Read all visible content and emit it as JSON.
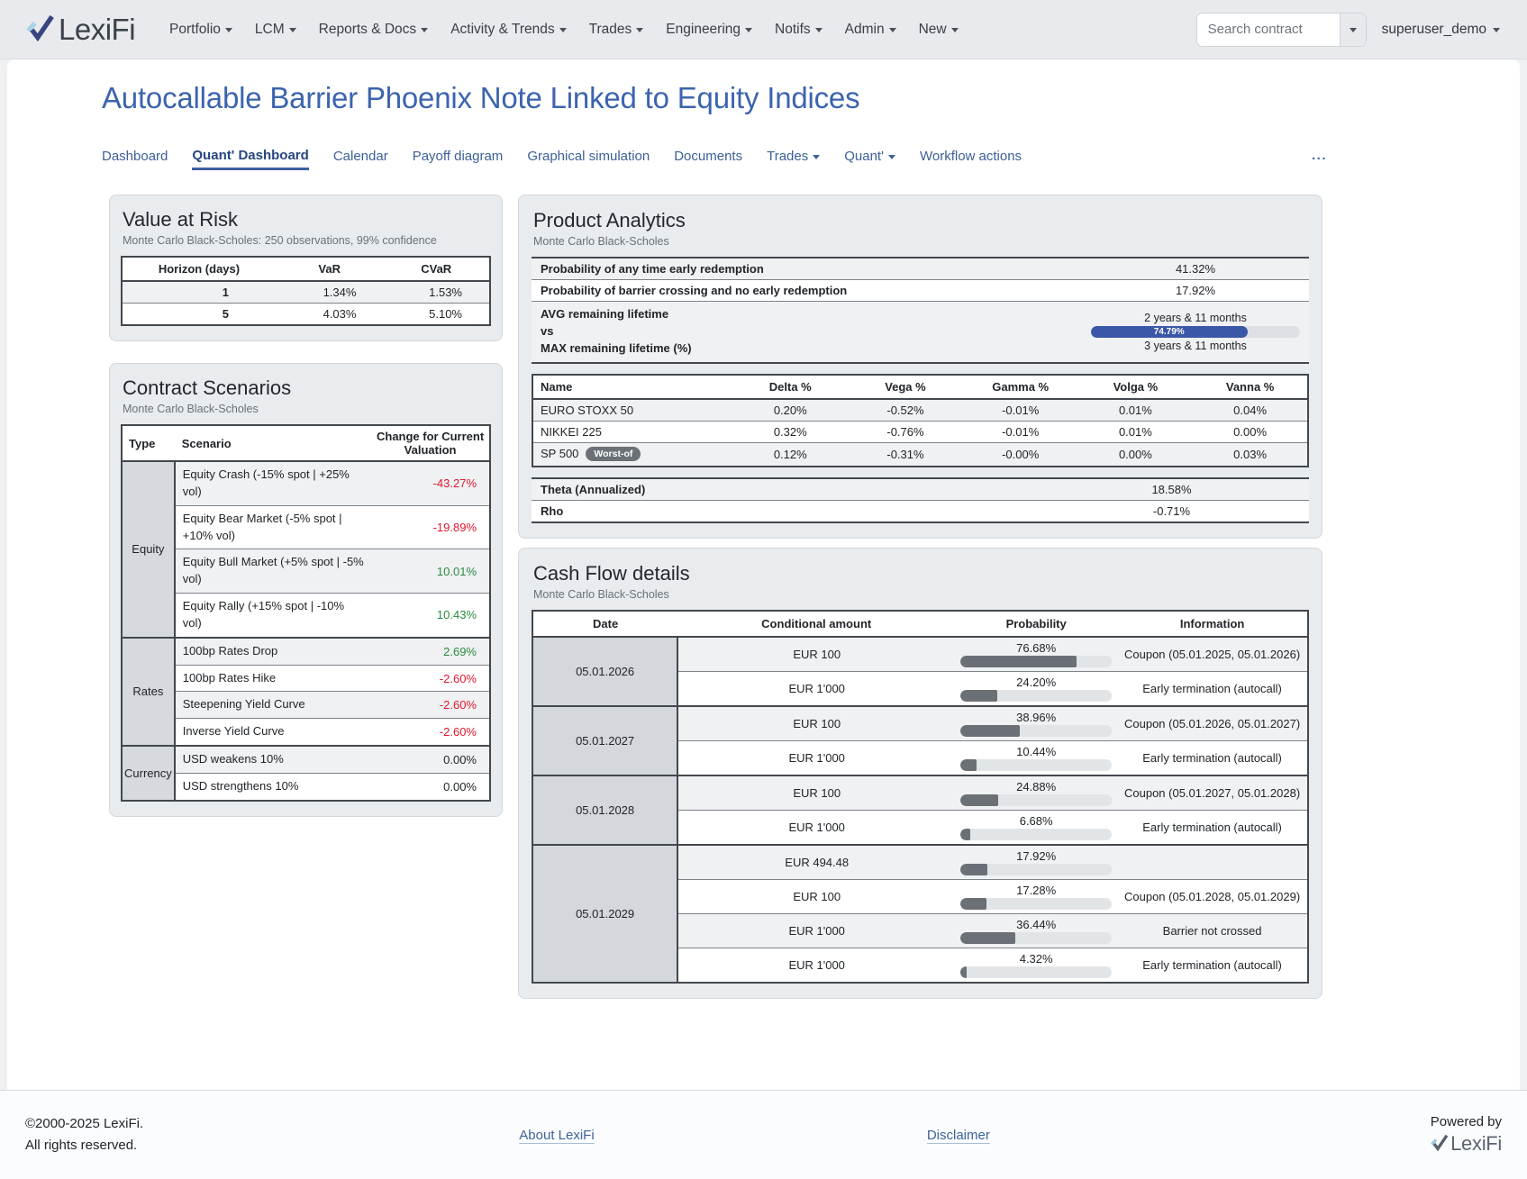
{
  "nav": {
    "brand": "LexiFi",
    "items": [
      {
        "label": "Portfolio"
      },
      {
        "label": "LCM"
      },
      {
        "label": "Reports & Docs"
      },
      {
        "label": "Activity & Trends"
      },
      {
        "label": "Trades"
      },
      {
        "label": "Engineering"
      },
      {
        "label": "Notifs"
      },
      {
        "label": "Admin"
      },
      {
        "label": "New"
      }
    ],
    "search_placeholder": "Search contract",
    "user": "superuser_demo"
  },
  "page": {
    "title": "Autocallable Barrier Phoenix Note Linked to Equity Indices",
    "tabs": [
      {
        "label": "Dashboard"
      },
      {
        "label": "Quant' Dashboard"
      },
      {
        "label": "Calendar"
      },
      {
        "label": "Payoff diagram"
      },
      {
        "label": "Graphical simulation"
      },
      {
        "label": "Documents"
      },
      {
        "label": "Trades"
      },
      {
        "label": "Quant'"
      },
      {
        "label": "Workflow actions"
      }
    ],
    "more_tabs": "..."
  },
  "value_at_risk": {
    "title": "Value at Risk",
    "subtitle": "Monte Carlo Black-Scholes: 250 observations, 99% confidence",
    "columns": [
      "Horizon (days)",
      "VaR",
      "CVaR"
    ],
    "rows": [
      [
        "1",
        "1.34%",
        "1.53%"
      ],
      [
        "5",
        "4.03%",
        "5.10%"
      ]
    ]
  },
  "contract_scenarios": {
    "title": "Contract Scenarios",
    "subtitle": "Monte Carlo Black-Scholes",
    "columns": [
      "Type",
      "Scenario",
      "Change for Current Valuation"
    ],
    "groups": [
      {
        "type": "Equity",
        "rows": [
          {
            "scenario": "Equity Crash (-15% spot | +25% vol)",
            "value": "-43.27%",
            "dir": "neg"
          },
          {
            "scenario": "Equity Bear Market (-5% spot | +10% vol)",
            "value": "-19.89%",
            "dir": "neg"
          },
          {
            "scenario": "Equity Bull Market (+5% spot | -5% vol)",
            "value": "10.01%",
            "dir": "pos"
          },
          {
            "scenario": "Equity Rally (+15% spot | -10% vol)",
            "value": "10.43%",
            "dir": "pos"
          }
        ]
      },
      {
        "type": "Rates",
        "rows": [
          {
            "scenario": "100bp Rates Drop",
            "value": "2.69%",
            "dir": "pos"
          },
          {
            "scenario": "100bp Rates Hike",
            "value": "-2.60%",
            "dir": "neg"
          },
          {
            "scenario": "Steepening Yield Curve",
            "value": "-2.60%",
            "dir": "neg"
          },
          {
            "scenario": "Inverse Yield Curve",
            "value": "-2.60%",
            "dir": "neg"
          }
        ]
      },
      {
        "type": "Currency",
        "rows": [
          {
            "scenario": "USD weakens 10%",
            "value": "0.00%",
            "dir": "zero"
          },
          {
            "scenario": "USD strengthens 10%",
            "value": "0.00%",
            "dir": "zero"
          }
        ]
      }
    ]
  },
  "product_analytics": {
    "title": "Product Analytics",
    "subtitle": "Monte Carlo Black-Scholes",
    "probability_rows": [
      {
        "label": "Probability of any time early redemption",
        "value": "41.32%"
      },
      {
        "label": "Probability of barrier crossing and no early redemption",
        "value": "17.92%"
      }
    ],
    "lifetime": {
      "label_lines": [
        "AVG remaining lifetime",
        "vs",
        "MAX remaining lifetime (%)"
      ],
      "avg": "2 years & 11 months",
      "max": "3 years & 11 months",
      "percent": 74.79,
      "percent_label": "74.79%"
    },
    "greeks": {
      "columns": [
        "Name",
        "Delta %",
        "Vega %",
        "Gamma %",
        "Volga %",
        "Vanna %"
      ],
      "rows": [
        {
          "name": "EURO STOXX 50",
          "values": [
            "0.20%",
            "-0.52%",
            "-0.01%",
            "0.01%",
            "0.04%"
          ]
        },
        {
          "name": "NIKKEI 225",
          "values": [
            "0.32%",
            "-0.76%",
            "-0.01%",
            "0.01%",
            "0.00%"
          ]
        },
        {
          "name": "SP 500",
          "badge": "Worst-of",
          "values": [
            "0.12%",
            "-0.31%",
            "-0.00%",
            "0.00%",
            "0.03%"
          ]
        }
      ]
    },
    "summary_rows": [
      {
        "label": "Theta (Annualized)",
        "value": "18.58%"
      },
      {
        "label": "Rho",
        "value": "-0.71%"
      }
    ]
  },
  "cash_flow": {
    "title": "Cash Flow details",
    "subtitle": "Monte Carlo Black-Scholes",
    "columns": [
      "Date",
      "Conditional amount",
      "Probability",
      "Information"
    ],
    "groups": [
      {
        "date": "05.01.2026",
        "rows": [
          {
            "amount": "EUR 100",
            "probability": "76.68%",
            "percent": 76.68,
            "information": "Coupon (05.01.2025, 05.01.2026)"
          },
          {
            "amount": "EUR 1'000",
            "probability": "24.20%",
            "percent": 24.2,
            "information": "Early termination (autocall)"
          }
        ]
      },
      {
        "date": "05.01.2027",
        "rows": [
          {
            "amount": "EUR 100",
            "probability": "38.96%",
            "percent": 38.96,
            "information": "Coupon (05.01.2026, 05.01.2027)"
          },
          {
            "amount": "EUR 1'000",
            "probability": "10.44%",
            "percent": 10.44,
            "information": "Early termination (autocall)"
          }
        ]
      },
      {
        "date": "05.01.2028",
        "rows": [
          {
            "amount": "EUR 100",
            "probability": "24.88%",
            "percent": 24.88,
            "information": "Coupon (05.01.2027, 05.01.2028)"
          },
          {
            "amount": "EUR 1'000",
            "probability": "6.68%",
            "percent": 6.68,
            "information": "Early termination (autocall)"
          }
        ]
      },
      {
        "date": "05.01.2029",
        "rows": [
          {
            "amount": "EUR 494.48",
            "probability": "17.92%",
            "percent": 17.92,
            "information": ""
          },
          {
            "amount": "EUR 100",
            "probability": "17.28%",
            "percent": 17.28,
            "information": "Coupon (05.01.2028, 05.01.2029)"
          },
          {
            "amount": "EUR 1'000",
            "probability": "36.44%",
            "percent": 36.44,
            "information": "Barrier not crossed"
          },
          {
            "amount": "EUR 1'000",
            "probability": "4.32%",
            "percent": 4.32,
            "information": "Early termination (autocall)"
          }
        ]
      }
    ]
  },
  "footer": {
    "copyright_line1": "©2000-2025 LexiFi.",
    "copyright_line2": "All rights reserved.",
    "about_link": "About LexiFi",
    "disclaimer_link": "Disclaimer",
    "powered_by": "Powered by",
    "powered_brand": "LexiFi"
  },
  "colors": {
    "accent_blue": "#3c64ae",
    "progress_blue": "#3b58a8",
    "probability_bar_gray": "#6a7076",
    "negative_red": "#e0172f",
    "positive_green": "#2b8a3e"
  }
}
